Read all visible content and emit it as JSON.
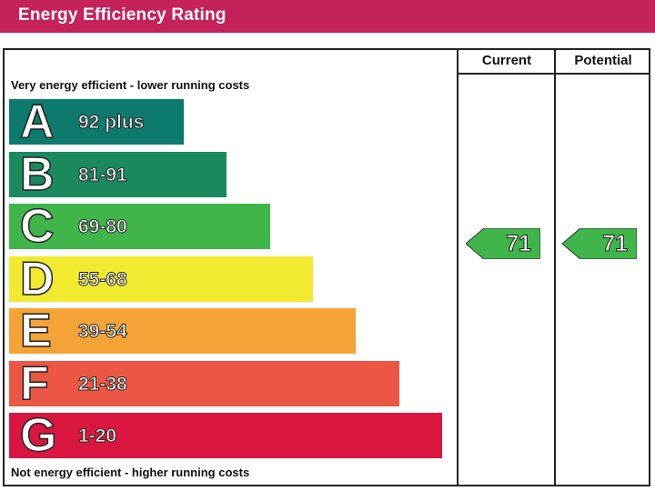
{
  "title": "Energy Efficiency Rating",
  "columns": {
    "current": "Current",
    "potential": "Potential"
  },
  "top_caption": "Very energy efficient - lower running costs",
  "bottom_caption": "Not energy efficient - higher running costs",
  "chart_data": {
    "type": "bar",
    "categories": [
      "A",
      "B",
      "C",
      "D",
      "E",
      "F",
      "G"
    ],
    "ranges": [
      "92 plus",
      "81-91",
      "69-80",
      "55-68",
      "39-54",
      "21-38",
      "1-20"
    ],
    "colors": [
      "#0d7a6e",
      "#1a8a5e",
      "#3fb54a",
      "#f2ea2e",
      "#f5a336",
      "#ec5645",
      "#d9163f"
    ],
    "current": {
      "value": 71,
      "band": "C"
    },
    "potential": {
      "value": 71,
      "band": "C"
    },
    "rating_color": "#3fb54a"
  }
}
